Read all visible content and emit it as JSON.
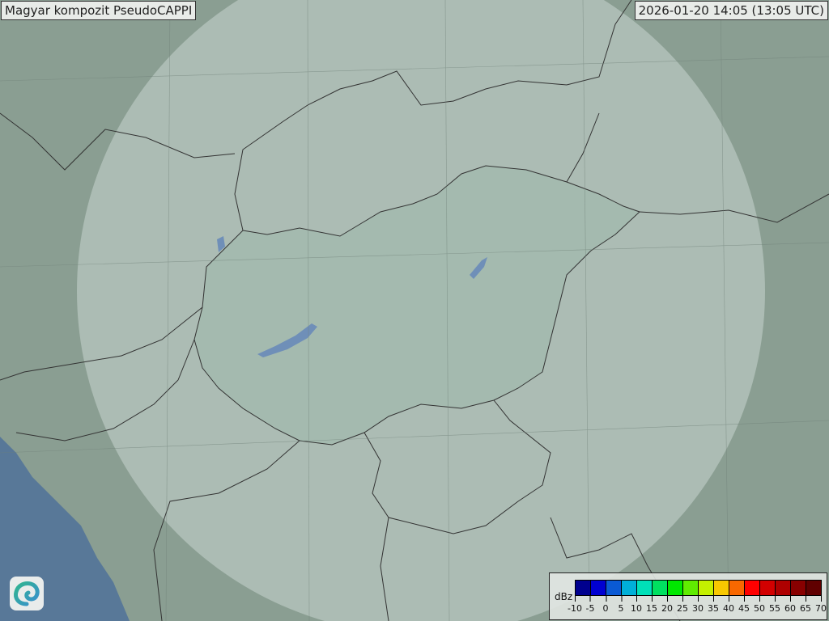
{
  "title": "Magyar kompozit  PseudoCAPPI",
  "timestamp": "2026-01-20 14:05 (13:05 UTC)",
  "logo": {
    "icon": "swirl-logo-icon",
    "colors": [
      "#2fb58f",
      "#3a8fd0"
    ]
  },
  "map": {
    "land_color": "#8a9e92",
    "coverage_color": "#c9d6cf",
    "country_fill": "#9fb8ac",
    "sea_color": "#587898",
    "lake_color": "#6f8fb8",
    "border_color": "#333333"
  },
  "legend": {
    "unit": "dBz",
    "labels": [
      "-10",
      "-5",
      "0",
      "5",
      "10",
      "15",
      "20",
      "25",
      "30",
      "35",
      "40",
      "45",
      "50",
      "55",
      "60",
      "65",
      "70"
    ],
    "colors": [
      "#00008e",
      "#0000d2",
      "#0a5ad4",
      "#00b0d8",
      "#00e0b8",
      "#00e060",
      "#00e800",
      "#60ec00",
      "#c4f000",
      "#f8c800",
      "#f86800",
      "#ff0000",
      "#d20000",
      "#ae0000",
      "#880000",
      "#600000"
    ]
  }
}
